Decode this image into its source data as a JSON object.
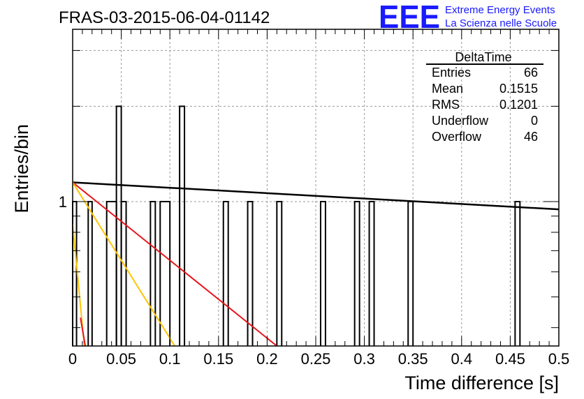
{
  "chart_data": {
    "type": "histogram",
    "title": "FRAS-03-2015-06-04-01142",
    "xlabel": "Time difference [s]",
    "ylabel": "Entries/bin",
    "xlim": [
      0,
      0.5
    ],
    "ylim": [
      0.35,
      3.5
    ],
    "yscale": "log",
    "grid": true,
    "x_ticks": [
      "0",
      "0.05",
      "0.1",
      "0.15",
      "0.2",
      "0.25",
      "0.3",
      "0.35",
      "0.4",
      "0.45",
      "0.5"
    ],
    "y_ticks": [
      "1"
    ],
    "bins": [
      [
        0.0,
        0.004,
        1
      ],
      [
        0.016,
        0.02,
        1
      ],
      [
        0.035,
        0.045,
        1
      ],
      [
        0.045,
        0.05,
        2
      ],
      [
        0.05,
        0.055,
        1
      ],
      [
        0.08,
        0.085,
        1
      ],
      [
        0.09,
        0.1,
        1
      ],
      [
        0.11,
        0.115,
        2
      ],
      [
        0.155,
        0.16,
        1
      ],
      [
        0.18,
        0.185,
        1
      ],
      [
        0.21,
        0.215,
        1
      ],
      [
        0.255,
        0.26,
        1
      ],
      [
        0.29,
        0.295,
        1
      ],
      [
        0.305,
        0.31,
        1
      ],
      [
        0.345,
        0.35,
        1
      ],
      [
        0.455,
        0.46,
        1
      ]
    ],
    "fits": [
      {
        "color": "#000000",
        "points": [
          [
            0,
            1.15
          ],
          [
            0.5,
            0.945
          ]
        ]
      },
      {
        "color": "#e8141a",
        "points": [
          [
            0,
            1.15
          ],
          [
            0.21,
            0.35
          ]
        ]
      },
      {
        "color": "#ffc400",
        "points": [
          [
            0,
            1.15
          ],
          [
            0.105,
            0.35
          ]
        ]
      },
      {
        "color": "#ffc400",
        "points": [
          [
            0,
            0.85
          ],
          [
            0.012,
            0.35
          ]
        ]
      },
      {
        "color": "#e8141a",
        "points": [
          [
            0.008,
            0.43
          ],
          [
            0.013,
            0.35
          ]
        ]
      }
    ],
    "stats": {
      "name": "DeltaTime",
      "rows": [
        {
          "label": "Entries",
          "value": "66"
        },
        {
          "label": "Mean",
          "value": "0.1515"
        },
        {
          "label": "RMS",
          "value": "0.1201"
        },
        {
          "label": "Underflow",
          "value": "0"
        },
        {
          "label": "Overflow",
          "value": "46"
        }
      ]
    }
  },
  "logo": {
    "letters": "EEE",
    "line1": "Extreme Energy Events",
    "line2": "La Scienza nelle Scuole"
  }
}
